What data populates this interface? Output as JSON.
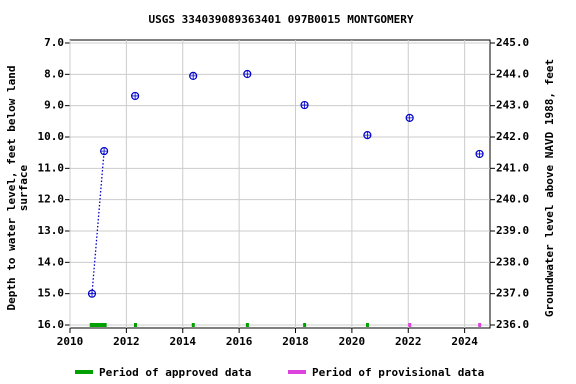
{
  "chart_data": {
    "type": "scatter",
    "title": "USGS 334039089363401 097B0015  MONTGOMERY",
    "ylabel": [
      "Depth to water level, feet below land",
      "surface"
    ],
    "y2label": "Groundwater level above NAVD 1988, feet",
    "xlim": [
      2010,
      2024.9
    ],
    "xticks": [
      2010,
      2012,
      2014,
      2016,
      2018,
      2020,
      2022,
      2024
    ],
    "ylim": [
      16,
      7
    ],
    "yticks": [
      {
        "value": 7,
        "label": "7.0"
      },
      {
        "value": 8,
        "label": "8.0"
      },
      {
        "value": 9,
        "label": "9.0"
      },
      {
        "value": 10,
        "label": "10.0"
      },
      {
        "value": 11,
        "label": "11.0"
      },
      {
        "value": 12,
        "label": "12.0"
      },
      {
        "value": 13,
        "label": "13.0"
      },
      {
        "value": 14,
        "label": "14.0"
      },
      {
        "value": 15,
        "label": "15.0"
      },
      {
        "value": 16,
        "label": "16.0"
      }
    ],
    "y2lim": [
      236,
      245
    ],
    "y2ticks": [
      {
        "value": 236,
        "label": "236.0"
      },
      {
        "value": 237,
        "label": "237.0"
      },
      {
        "value": 238,
        "label": "238.0"
      },
      {
        "value": 239,
        "label": "239.0"
      },
      {
        "value": 240,
        "label": "240.0"
      },
      {
        "value": 241,
        "label": "241.0"
      },
      {
        "value": 242,
        "label": "242.0"
      },
      {
        "value": 243,
        "label": "243.0"
      },
      {
        "value": 244,
        "label": "244.0"
      },
      {
        "value": 245,
        "label": "245.0"
      }
    ],
    "x": [
      2010.78,
      2011.21,
      2012.31,
      2014.37,
      2016.29,
      2018.32,
      2020.55,
      2022.05,
      2024.53
    ],
    "series": [
      {
        "name": "Depth to water level",
        "color": "#0000cc",
        "values": [
          15.0,
          10.45,
          8.69,
          8.05,
          7.99,
          8.98,
          9.94,
          9.39,
          10.54
        ]
      }
    ],
    "periods": [
      {
        "name": "Period of approved data",
        "color": "#00a000",
        "ranges": [
          [
            2010.7,
            2011.3
          ],
          [
            2012.27,
            2012.37
          ],
          [
            2014.32,
            2014.42
          ],
          [
            2016.24,
            2016.34
          ],
          [
            2018.27,
            2018.37
          ],
          [
            2020.5,
            2020.6
          ]
        ]
      },
      {
        "name": "Period of provisional data",
        "color": "#dd44dd",
        "ranges": [
          [
            2022.0,
            2022.1
          ],
          [
            2024.48,
            2024.58
          ]
        ]
      }
    ]
  }
}
